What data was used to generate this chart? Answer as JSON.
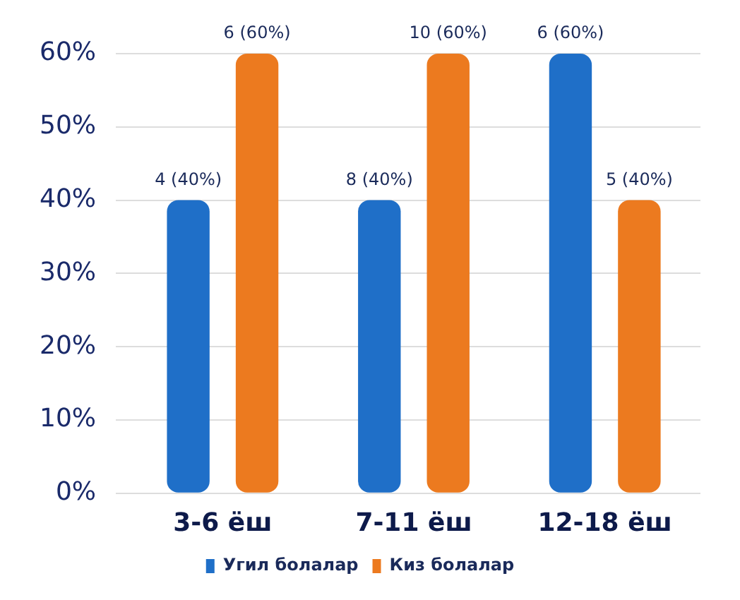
{
  "chart_data": {
    "type": "bar",
    "categories": [
      "3-6 ёш",
      "7-11 ёш",
      "12-18 ёш"
    ],
    "series": [
      {
        "name": "Угил болалар",
        "color": "#1f6fc8",
        "values": [
          40,
          40,
          60
        ],
        "value_labels": [
          "4 (40%)",
          "8 (40%)",
          "6 (60%)"
        ]
      },
      {
        "name": "Киз болалар",
        "color": "#ec7a1f",
        "values": [
          60,
          60,
          40
        ],
        "value_labels": [
          "6 (60%)",
          "10 (60%)",
          "5 (40%)"
        ]
      }
    ],
    "ylim": [
      0,
      60
    ],
    "yticks": [
      {
        "value": 0,
        "label": "0%"
      },
      {
        "value": 10,
        "label": "10%"
      },
      {
        "value": 20,
        "label": "20%"
      },
      {
        "value": 30,
        "label": "30%"
      },
      {
        "value": 40,
        "label": "40%"
      },
      {
        "value": 50,
        "label": "50%"
      },
      {
        "value": 60,
        "label": "60%"
      }
    ],
    "grid": "y",
    "legend": "bottom"
  }
}
